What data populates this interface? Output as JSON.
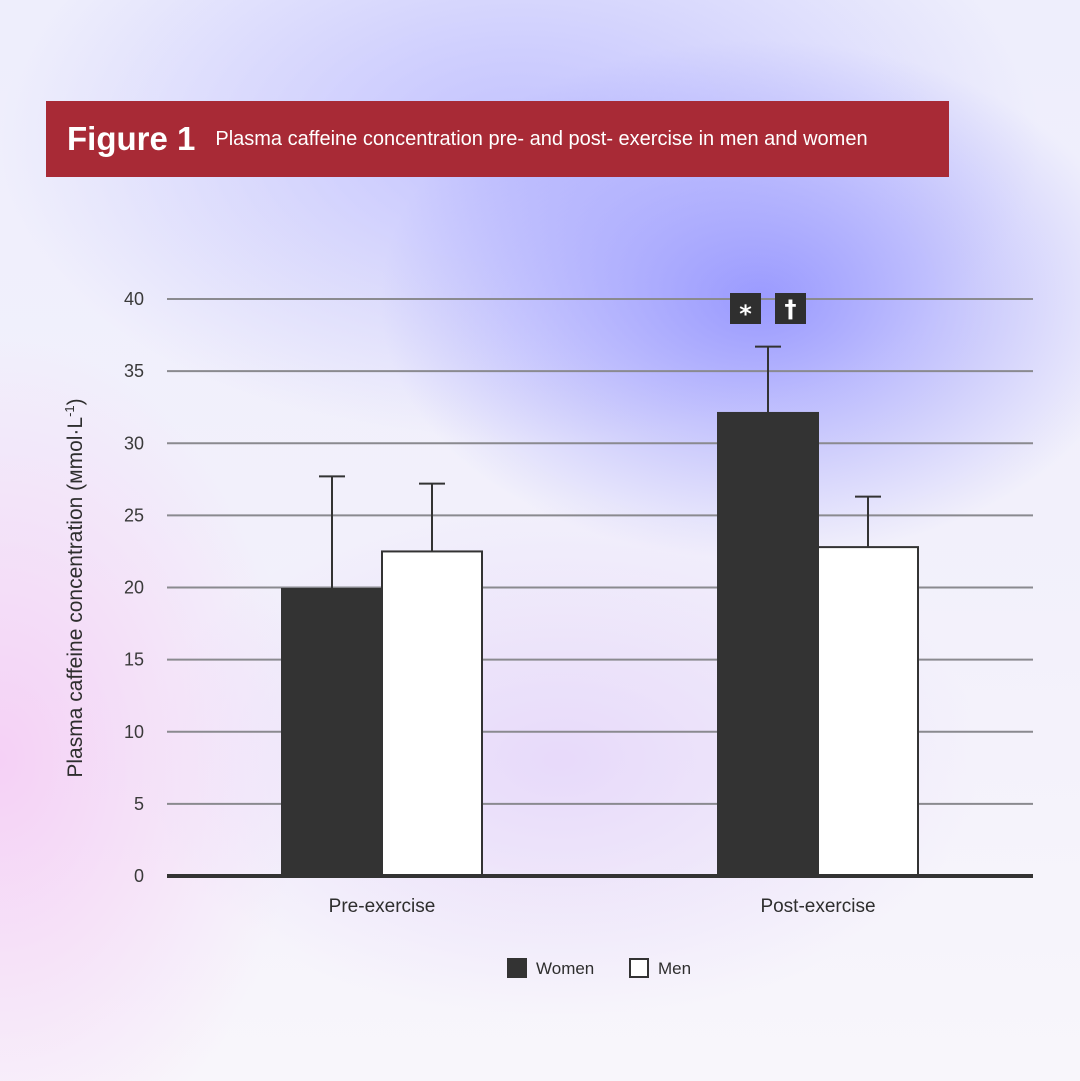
{
  "header": {
    "figure_label": "Figure 1",
    "title": "Plasma caffeine concentration pre- and post- exercise in men and women"
  },
  "chart_data": {
    "type": "bar",
    "categories": [
      "Pre-exercise",
      "Post-exercise"
    ],
    "series": [
      {
        "name": "Women",
        "values": [
          19.9,
          32.1
        ],
        "error": [
          7.8,
          4.6
        ],
        "color": "#333333"
      },
      {
        "name": "Men",
        "values": [
          22.5,
          22.8
        ],
        "error": [
          4.7,
          3.5
        ],
        "color": "#ffffff"
      }
    ],
    "ylabel": "Plasma caffeine concentration (мmol·L",
    "ylabel_sup": "-1",
    "ylabel_close": ")",
    "ylim": [
      0,
      40
    ],
    "yticks": [
      0,
      5,
      10,
      15,
      20,
      25,
      30,
      35,
      40
    ],
    "grid": true,
    "legend_placement": "bottom-center",
    "annotations": [
      {
        "category": "Post-exercise",
        "symbols": [
          "*",
          "†"
        ]
      }
    ],
    "colors": {
      "grid": "#8a8a8f",
      "axis": "#333333",
      "bar_dark": "#333333",
      "bar_light": "#ffffff"
    }
  }
}
